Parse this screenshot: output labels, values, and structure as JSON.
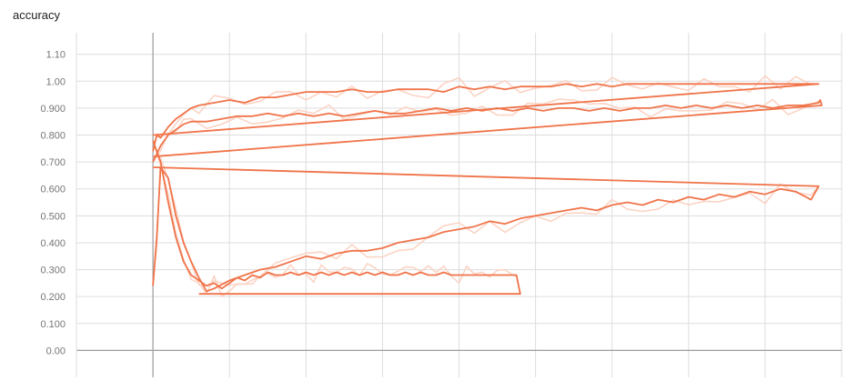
{
  "chart_data": {
    "type": "line",
    "title": "accuracy",
    "xlabel": "",
    "ylabel": "",
    "ylim": [
      -0.1,
      1.18
    ],
    "yticks": [
      "0.00",
      "0.100",
      "0.200",
      "0.300",
      "0.400",
      "0.500",
      "0.600",
      "0.700",
      "0.800",
      "0.900",
      "1.00",
      "1.10"
    ],
    "yticks_values": [
      0.0,
      0.1,
      0.2,
      0.3,
      0.4,
      0.5,
      0.6,
      0.7,
      0.8,
      0.9,
      1.0,
      1.1
    ],
    "xlim": [
      -1,
      9
    ],
    "xgrid": [
      0,
      1,
      2,
      3,
      4,
      5,
      6,
      7,
      8,
      9
    ],
    "grid": true,
    "colors": {
      "smoothed": "#f0744a",
      "raw": "#fbd4c5",
      "axis": "#9e9e9e",
      "grid": "#dddddd"
    },
    "series": [
      {
        "points": [
          [
            0.0,
            0.74
          ],
          [
            0.05,
            0.8
          ],
          [
            0.1,
            0.79
          ],
          [
            0.2,
            0.83
          ],
          [
            0.3,
            0.86
          ],
          [
            0.4,
            0.88
          ],
          [
            0.5,
            0.9
          ],
          [
            0.6,
            0.91
          ],
          [
            0.8,
            0.92
          ],
          [
            1.0,
            0.93
          ],
          [
            1.2,
            0.92
          ],
          [
            1.4,
            0.94
          ],
          [
            1.6,
            0.94
          ],
          [
            1.8,
            0.95
          ],
          [
            2.0,
            0.96
          ],
          [
            2.2,
            0.96
          ],
          [
            2.4,
            0.96
          ],
          [
            2.6,
            0.97
          ],
          [
            2.8,
            0.96
          ],
          [
            3.0,
            0.96
          ],
          [
            3.2,
            0.97
          ],
          [
            3.4,
            0.97
          ],
          [
            3.6,
            0.97
          ],
          [
            3.8,
            0.96
          ],
          [
            4.0,
            0.98
          ],
          [
            4.2,
            0.97
          ],
          [
            4.4,
            0.98
          ],
          [
            4.6,
            0.97
          ],
          [
            4.8,
            0.98
          ],
          [
            5.0,
            0.98
          ],
          [
            5.2,
            0.98
          ],
          [
            5.4,
            0.99
          ],
          [
            5.6,
            0.98
          ],
          [
            5.8,
            0.99
          ],
          [
            6.0,
            0.98
          ],
          [
            6.2,
            0.99
          ],
          [
            6.4,
            0.99
          ],
          [
            6.6,
            0.99
          ],
          [
            6.8,
            0.99
          ],
          [
            7.0,
            0.99
          ],
          [
            7.2,
            0.99
          ],
          [
            7.4,
            0.99
          ],
          [
            7.6,
            0.99
          ],
          [
            7.8,
            0.99
          ],
          [
            8.0,
            0.99
          ],
          [
            8.2,
            0.99
          ],
          [
            8.4,
            0.99
          ],
          [
            8.6,
            0.99
          ],
          [
            8.7,
            0.99
          ],
          [
            0.0,
            0.8
          ]
        ]
      },
      {
        "points": [
          [
            0.0,
            0.7
          ],
          [
            0.1,
            0.76
          ],
          [
            0.2,
            0.8
          ],
          [
            0.3,
            0.82
          ],
          [
            0.4,
            0.84
          ],
          [
            0.5,
            0.85
          ],
          [
            0.7,
            0.85
          ],
          [
            0.9,
            0.86
          ],
          [
            1.1,
            0.87
          ],
          [
            1.3,
            0.87
          ],
          [
            1.5,
            0.88
          ],
          [
            1.7,
            0.87
          ],
          [
            1.9,
            0.88
          ],
          [
            2.1,
            0.87
          ],
          [
            2.3,
            0.88
          ],
          [
            2.5,
            0.87
          ],
          [
            2.7,
            0.88
          ],
          [
            2.9,
            0.89
          ],
          [
            3.1,
            0.88
          ],
          [
            3.3,
            0.88
          ],
          [
            3.5,
            0.89
          ],
          [
            3.7,
            0.9
          ],
          [
            3.9,
            0.89
          ],
          [
            4.1,
            0.9
          ],
          [
            4.3,
            0.89
          ],
          [
            4.5,
            0.9
          ],
          [
            4.7,
            0.89
          ],
          [
            4.9,
            0.9
          ],
          [
            5.1,
            0.89
          ],
          [
            5.3,
            0.9
          ],
          [
            5.5,
            0.9
          ],
          [
            5.7,
            0.89
          ],
          [
            5.9,
            0.9
          ],
          [
            6.1,
            0.89
          ],
          [
            6.3,
            0.9
          ],
          [
            6.5,
            0.9
          ],
          [
            6.7,
            0.91
          ],
          [
            6.9,
            0.9
          ],
          [
            7.1,
            0.91
          ],
          [
            7.3,
            0.9
          ],
          [
            7.5,
            0.91
          ],
          [
            7.7,
            0.9
          ],
          [
            7.9,
            0.91
          ],
          [
            8.1,
            0.9
          ],
          [
            8.3,
            0.91
          ],
          [
            8.5,
            0.91
          ],
          [
            8.7,
            0.92
          ],
          [
            8.72,
            0.93
          ],
          [
            8.74,
            0.91
          ],
          [
            0.0,
            0.72
          ]
        ]
      },
      {
        "points": [
          [
            0.0,
            0.24
          ],
          [
            0.05,
            0.42
          ],
          [
            0.1,
            0.68
          ],
          [
            0.2,
            0.64
          ],
          [
            0.3,
            0.5
          ],
          [
            0.4,
            0.4
          ],
          [
            0.5,
            0.33
          ],
          [
            0.6,
            0.27
          ],
          [
            0.7,
            0.22
          ],
          [
            0.8,
            0.23
          ],
          [
            1.0,
            0.26
          ],
          [
            1.2,
            0.28
          ],
          [
            1.4,
            0.3
          ],
          [
            1.6,
            0.31
          ],
          [
            1.8,
            0.33
          ],
          [
            2.0,
            0.35
          ],
          [
            2.2,
            0.34
          ],
          [
            2.4,
            0.36
          ],
          [
            2.6,
            0.37
          ],
          [
            2.8,
            0.37
          ],
          [
            3.0,
            0.38
          ],
          [
            3.2,
            0.4
          ],
          [
            3.4,
            0.41
          ],
          [
            3.6,
            0.42
          ],
          [
            3.8,
            0.44
          ],
          [
            4.0,
            0.45
          ],
          [
            4.2,
            0.46
          ],
          [
            4.4,
            0.48
          ],
          [
            4.6,
            0.47
          ],
          [
            4.8,
            0.49
          ],
          [
            5.0,
            0.5
          ],
          [
            5.2,
            0.51
          ],
          [
            5.4,
            0.52
          ],
          [
            5.6,
            0.53
          ],
          [
            5.8,
            0.52
          ],
          [
            6.0,
            0.54
          ],
          [
            6.2,
            0.55
          ],
          [
            6.4,
            0.54
          ],
          [
            6.6,
            0.56
          ],
          [
            6.8,
            0.55
          ],
          [
            7.0,
            0.57
          ],
          [
            7.2,
            0.56
          ],
          [
            7.4,
            0.58
          ],
          [
            7.6,
            0.57
          ],
          [
            7.8,
            0.59
          ],
          [
            8.0,
            0.58
          ],
          [
            8.2,
            0.6
          ],
          [
            8.4,
            0.59
          ],
          [
            8.6,
            0.56
          ],
          [
            8.7,
            0.61
          ],
          [
            0.0,
            0.68
          ]
        ]
      },
      {
        "points": [
          [
            0.0,
            0.78
          ],
          [
            0.1,
            0.7
          ],
          [
            0.2,
            0.55
          ],
          [
            0.3,
            0.42
          ],
          [
            0.4,
            0.33
          ],
          [
            0.5,
            0.28
          ],
          [
            0.6,
            0.26
          ],
          [
            0.7,
            0.24
          ],
          [
            0.8,
            0.25
          ],
          [
            0.9,
            0.23
          ],
          [
            1.0,
            0.25
          ],
          [
            1.1,
            0.27
          ],
          [
            1.2,
            0.26
          ],
          [
            1.3,
            0.28
          ],
          [
            1.4,
            0.27
          ],
          [
            1.5,
            0.29
          ],
          [
            1.6,
            0.28
          ],
          [
            1.7,
            0.28
          ],
          [
            1.8,
            0.29
          ],
          [
            1.9,
            0.28
          ],
          [
            2.0,
            0.29
          ],
          [
            2.1,
            0.28
          ],
          [
            2.2,
            0.29
          ],
          [
            2.3,
            0.28
          ],
          [
            2.4,
            0.29
          ],
          [
            2.5,
            0.28
          ],
          [
            2.6,
            0.29
          ],
          [
            2.7,
            0.28
          ],
          [
            2.8,
            0.29
          ],
          [
            2.9,
            0.28
          ],
          [
            3.0,
            0.29
          ],
          [
            3.1,
            0.28
          ],
          [
            3.2,
            0.28
          ],
          [
            3.3,
            0.29
          ],
          [
            3.4,
            0.28
          ],
          [
            3.5,
            0.29
          ],
          [
            3.6,
            0.28
          ],
          [
            3.7,
            0.28
          ],
          [
            3.8,
            0.29
          ],
          [
            3.9,
            0.28
          ],
          [
            4.0,
            0.28
          ],
          [
            4.1,
            0.28
          ],
          [
            4.2,
            0.28
          ],
          [
            4.3,
            0.28
          ],
          [
            4.4,
            0.28
          ],
          [
            4.5,
            0.28
          ],
          [
            4.6,
            0.28
          ],
          [
            4.7,
            0.28
          ],
          [
            4.75,
            0.28
          ],
          [
            4.8,
            0.21
          ],
          [
            0.6,
            0.21
          ]
        ]
      }
    ]
  }
}
